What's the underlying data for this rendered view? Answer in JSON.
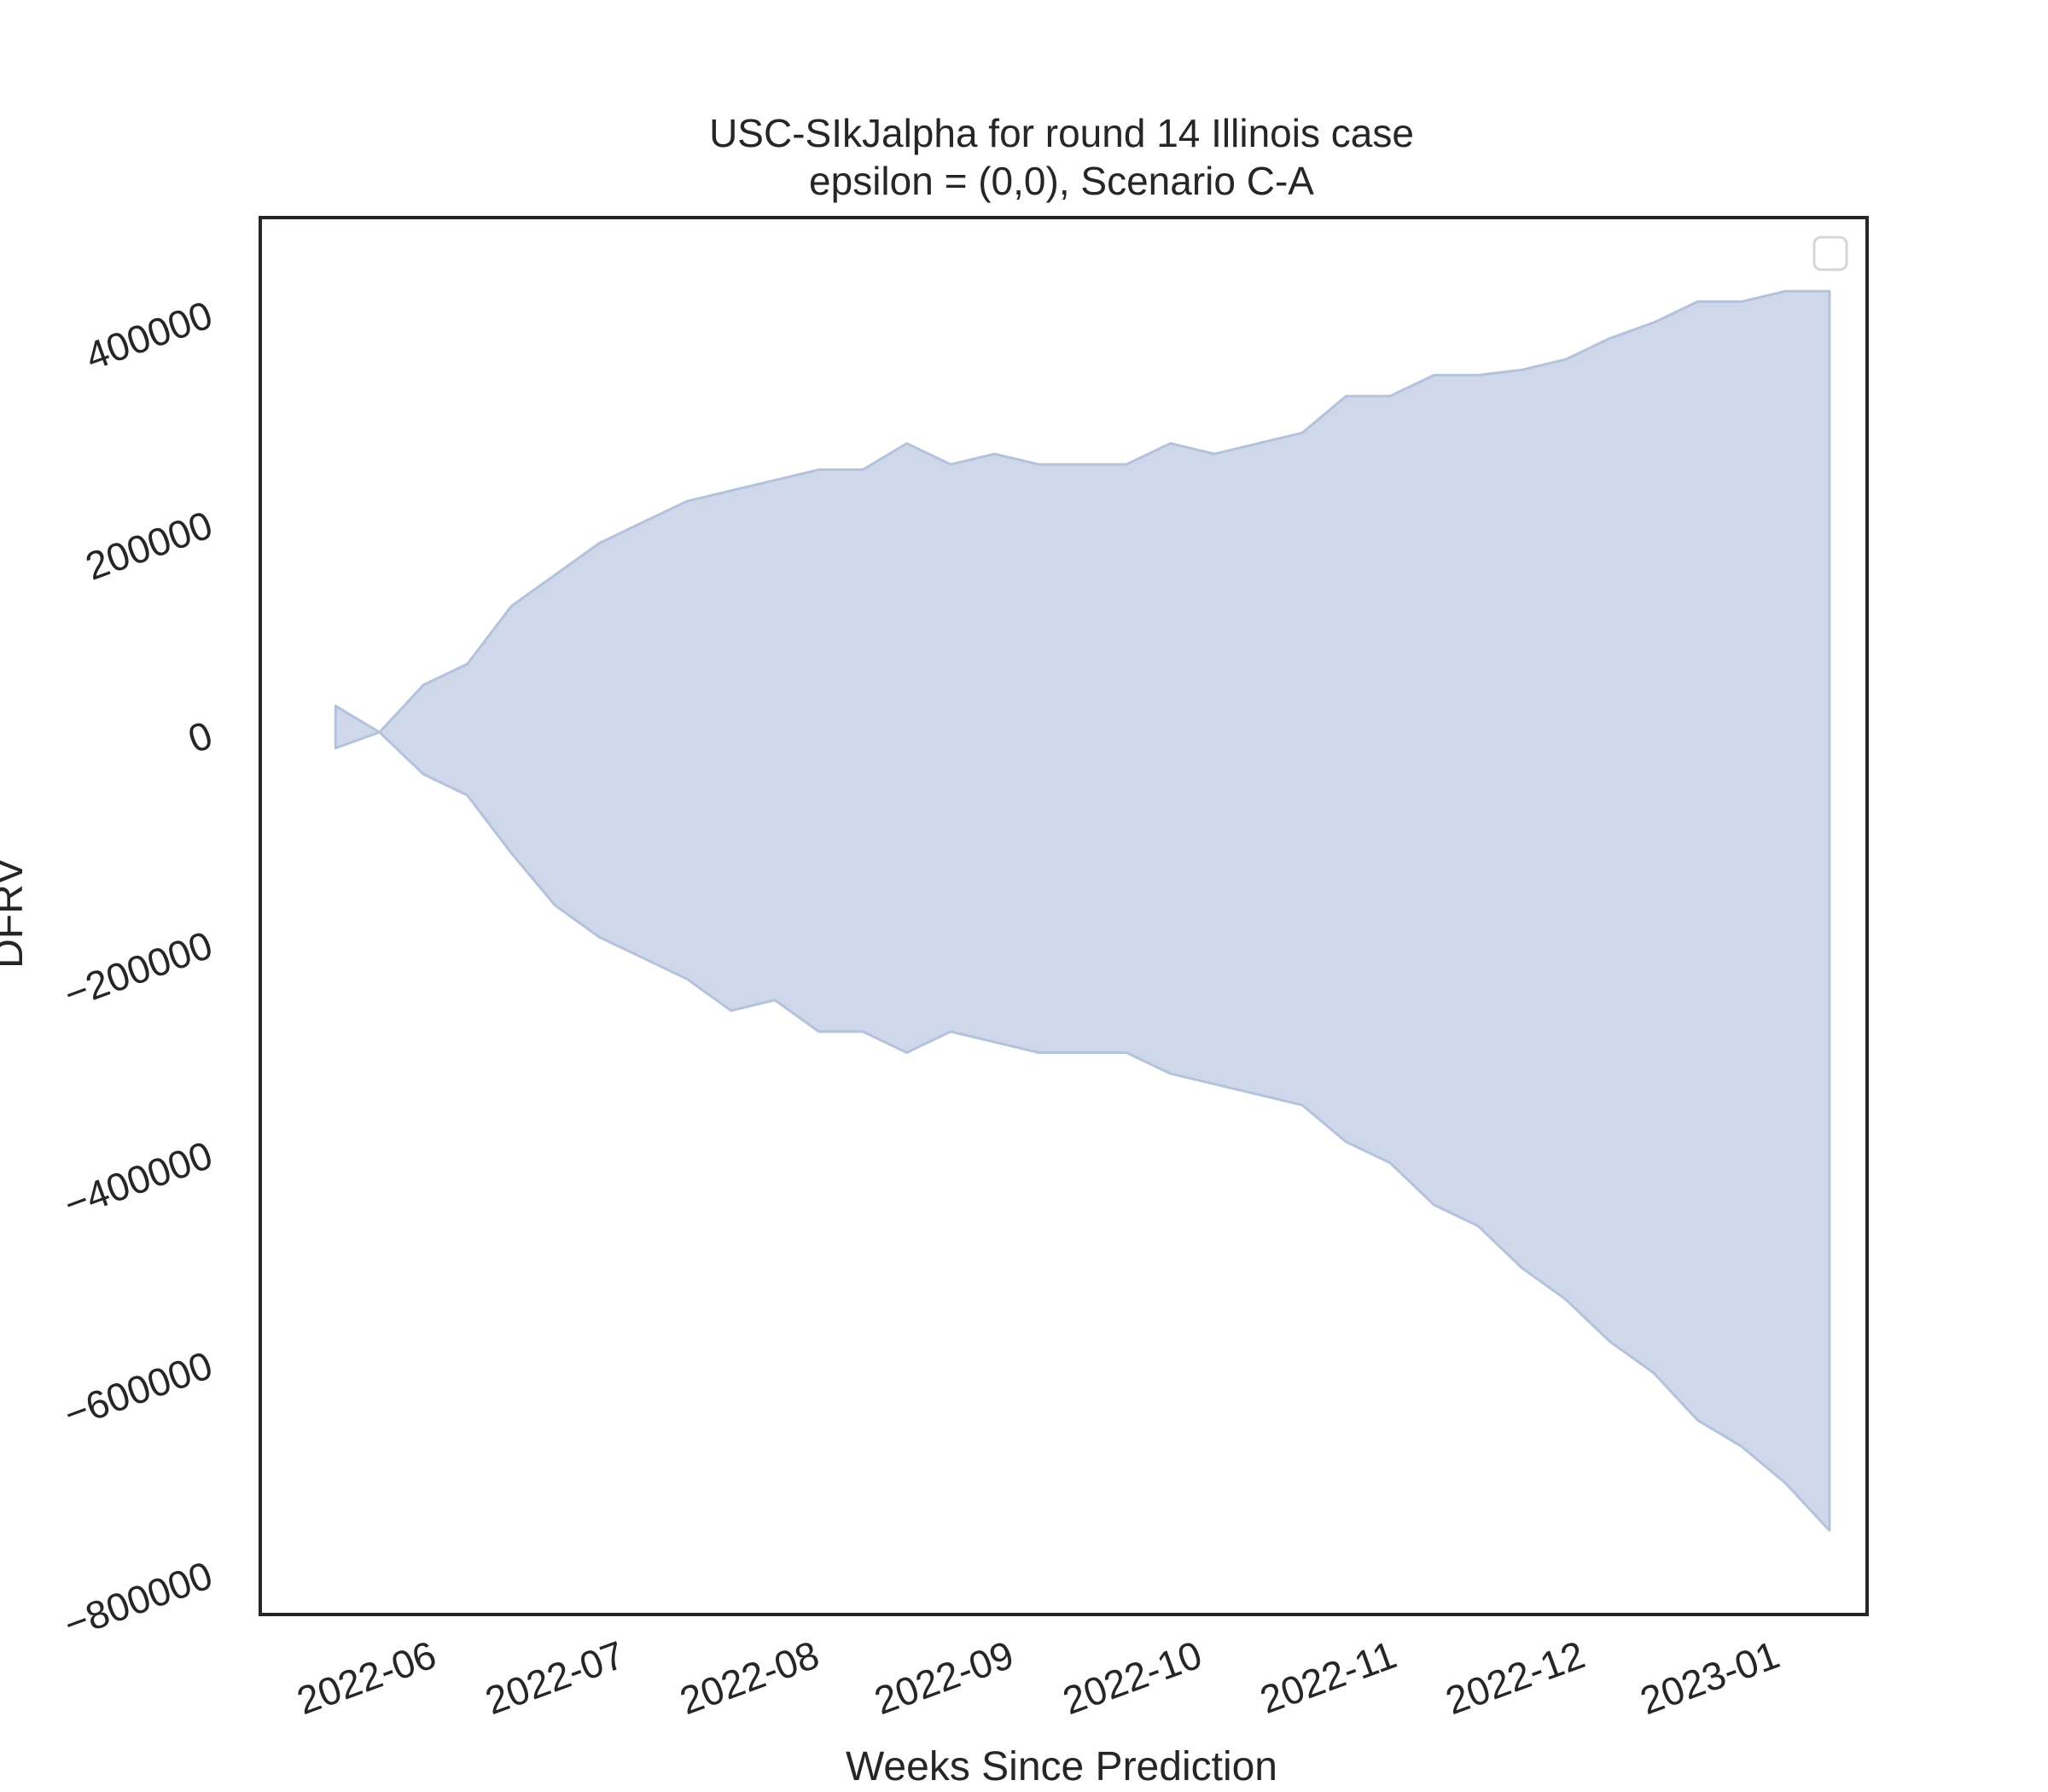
{
  "chart_data": {
    "type": "area",
    "title": [
      "USC-SIkJalpha for round 14 Illinois case",
      "epsilon = (0,0), Scenario C-A"
    ],
    "xlabel": "Weeks Since Prediction",
    "ylabel": "DFRV",
    "x_tick_labels": [
      "2022-06",
      "2022-07",
      "2022-08",
      "2022-09",
      "2022-10",
      "2022-11",
      "2022-12",
      "2023-01"
    ],
    "x_ticks": [
      "2022-06-01",
      "2022-07-01",
      "2022-08-01",
      "2022-09-01",
      "2022-10-01",
      "2022-11-01",
      "2022-12-01",
      "2023-01-01"
    ],
    "xlim": [
      "2022-05-06",
      "2023-01-17"
    ],
    "y_tick_labels": [
      "400000",
      "200000",
      "0",
      "−200000",
      "−400000",
      "−600000",
      "−800000"
    ],
    "y_ticks": [
      400000,
      200000,
      0,
      -200000,
      -400000,
      -600000,
      -800000
    ],
    "ylim": [
      -840000,
      490000
    ],
    "grid": false,
    "legend": {
      "placement": "top-right",
      "entries": []
    },
    "colors": {
      "fill": "#cfd8ea",
      "edge": "#b4c2dc",
      "frame": "#262626"
    },
    "band": {
      "x": [
        "2022-05-18",
        "2022-05-25",
        "2022-06-01",
        "2022-06-08",
        "2022-06-15",
        "2022-06-22",
        "2022-06-29",
        "2022-07-06",
        "2022-07-13",
        "2022-07-20",
        "2022-07-27",
        "2022-08-03",
        "2022-08-10",
        "2022-08-17",
        "2022-08-24",
        "2022-08-31",
        "2022-09-07",
        "2022-09-14",
        "2022-09-21",
        "2022-09-28",
        "2022-10-05",
        "2022-10-12",
        "2022-10-19",
        "2022-10-26",
        "2022-11-02",
        "2022-11-09",
        "2022-11-16",
        "2022-11-23",
        "2022-11-30",
        "2022-12-07",
        "2022-12-14",
        "2022-12-21",
        "2022-12-28",
        "2023-01-04",
        "2023-01-11"
      ],
      "upper": [
        25000,
        0,
        45000,
        65000,
        120000,
        150000,
        180000,
        200000,
        220000,
        230000,
        240000,
        250000,
        250000,
        275000,
        255000,
        265000,
        255000,
        255000,
        255000,
        275000,
        265000,
        275000,
        285000,
        320000,
        320000,
        340000,
        340000,
        345000,
        355000,
        375000,
        390000,
        410000,
        410000,
        420000,
        420000
      ],
      "lower": [
        -15000,
        0,
        -40000,
        -60000,
        -115000,
        -165000,
        -195000,
        -215000,
        -235000,
        -265000,
        -255000,
        -285000,
        -285000,
        -305000,
        -285000,
        -295000,
        -305000,
        -305000,
        -305000,
        -325000,
        -335000,
        -345000,
        -355000,
        -390000,
        -410000,
        -450000,
        -470000,
        -510000,
        -540000,
        -580000,
        -610000,
        -655000,
        -680000,
        -715000,
        -760000
      ]
    }
  }
}
